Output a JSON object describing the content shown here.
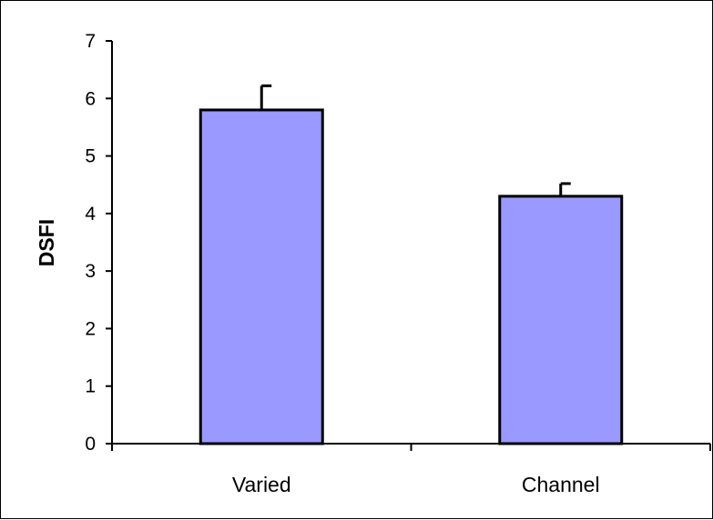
{
  "chart_data": {
    "type": "bar",
    "title": "",
    "xlabel": "",
    "ylabel": "DSFI",
    "categories": [
      "Varied",
      "Channel"
    ],
    "values": [
      5.8,
      4.3
    ],
    "error_bars": [
      0.42,
      0.22
    ],
    "ylim": [
      0,
      7
    ],
    "yticks": [
      "0",
      "1",
      "2",
      "3",
      "4",
      "5",
      "6",
      "7"
    ],
    "grid": false,
    "legend": "none",
    "bar_color": "#9999ff",
    "edge_color": "#000000"
  }
}
